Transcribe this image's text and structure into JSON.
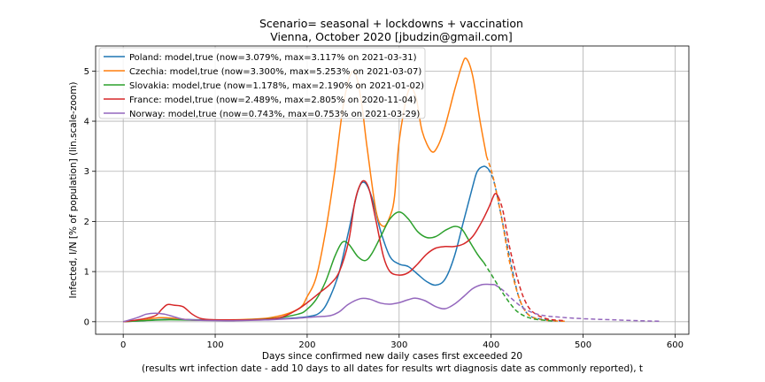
{
  "chart_data": {
    "type": "line",
    "title": "Scenario= seasonal + lockdowns + vaccination",
    "subtitle": "Vienna, October 2020 [jbudzin@gmail.com]",
    "xlabel": "Days since confirmed new daily cases first exceeded 20",
    "xlabel2": "(results wrt infection date - add 10 days to all dates for results wrt diagnosis date as commonly reported), t",
    "ylabel": "Infected, I/N [% of population] (lin.scale-zoom)",
    "xlim": [
      -30,
      615
    ],
    "ylim": [
      -0.25,
      5.5
    ],
    "xticks": [
      0,
      100,
      200,
      300,
      400,
      500,
      600
    ],
    "yticks": [
      0,
      1,
      2,
      3,
      4,
      5
    ],
    "grid": true,
    "legend_position": "top-left",
    "series": [
      {
        "name": "Poland: model,true (now=3.079%, max=3.117% on 2021-03-31)",
        "color": "#1f77b4",
        "solid": [
          [
            0,
            0
          ],
          [
            20,
            0.02
          ],
          [
            50,
            0.05
          ],
          [
            80,
            0.04
          ],
          [
            120,
            0.03
          ],
          [
            160,
            0.05
          ],
          [
            200,
            0.1
          ],
          [
            215,
            0.2
          ],
          [
            225,
            0.5
          ],
          [
            235,
            1.0
          ],
          [
            245,
            1.8
          ],
          [
            255,
            2.6
          ],
          [
            262,
            2.78
          ],
          [
            270,
            2.5
          ],
          [
            280,
            1.8
          ],
          [
            290,
            1.3
          ],
          [
            300,
            1.15
          ],
          [
            310,
            1.1
          ],
          [
            320,
            0.95
          ],
          [
            330,
            0.8
          ],
          [
            340,
            0.73
          ],
          [
            350,
            0.85
          ],
          [
            360,
            1.3
          ],
          [
            370,
            2.0
          ],
          [
            380,
            2.7
          ],
          [
            385,
            3.0
          ],
          [
            392,
            3.1
          ],
          [
            397,
            3.05
          ]
        ],
        "dashed": [
          [
            397,
            3.05
          ],
          [
            403,
            2.8
          ],
          [
            410,
            2.2
          ],
          [
            420,
            1.3
          ],
          [
            430,
            0.5
          ],
          [
            440,
            0.15
          ],
          [
            455,
            0.05
          ],
          [
            480,
            0.01
          ]
        ]
      },
      {
        "name": "Czechia: model,true (now=3.300%, max=5.253% on 2021-03-07)",
        "color": "#ff7f0e",
        "solid": [
          [
            0,
            0
          ],
          [
            20,
            0.03
          ],
          [
            40,
            0.08
          ],
          [
            60,
            0.06
          ],
          [
            80,
            0.03
          ],
          [
            120,
            0.04
          ],
          [
            160,
            0.08
          ],
          [
            190,
            0.25
          ],
          [
            200,
            0.5
          ],
          [
            210,
            0.9
          ],
          [
            220,
            1.8
          ],
          [
            230,
            3.0
          ],
          [
            240,
            4.4
          ],
          [
            250,
            5.0
          ],
          [
            258,
            4.5
          ],
          [
            265,
            3.5
          ],
          [
            275,
            2.2
          ],
          [
            283,
            1.9
          ],
          [
            290,
            2.1
          ],
          [
            295,
            2.5
          ],
          [
            300,
            3.6
          ],
          [
            310,
            4.6
          ],
          [
            318,
            4.5
          ],
          [
            325,
            3.8
          ],
          [
            335,
            3.4
          ],
          [
            342,
            3.5
          ],
          [
            350,
            3.9
          ],
          [
            360,
            4.6
          ],
          [
            368,
            5.1
          ],
          [
            373,
            5.25
          ],
          [
            380,
            4.9
          ],
          [
            388,
            4.0
          ],
          [
            395,
            3.3
          ]
        ],
        "dashed": [
          [
            395,
            3.3
          ],
          [
            402,
            2.9
          ],
          [
            410,
            2.2
          ],
          [
            420,
            1.2
          ],
          [
            430,
            0.5
          ],
          [
            440,
            0.15
          ],
          [
            455,
            0.04
          ],
          [
            480,
            0.01
          ]
        ]
      },
      {
        "name": "Slovakia: model,true (now=1.178%, max=2.190% on 2021-01-02)",
        "color": "#2ca02c",
        "solid": [
          [
            0,
            0
          ],
          [
            20,
            0.02
          ],
          [
            50,
            0.04
          ],
          [
            80,
            0.03
          ],
          [
            120,
            0.03
          ],
          [
            160,
            0.06
          ],
          [
            190,
            0.15
          ],
          [
            200,
            0.25
          ],
          [
            210,
            0.45
          ],
          [
            220,
            0.8
          ],
          [
            230,
            1.3
          ],
          [
            238,
            1.58
          ],
          [
            245,
            1.55
          ],
          [
            255,
            1.3
          ],
          [
            263,
            1.22
          ],
          [
            270,
            1.35
          ],
          [
            280,
            1.7
          ],
          [
            290,
            2.05
          ],
          [
            300,
            2.19
          ],
          [
            310,
            2.05
          ],
          [
            320,
            1.8
          ],
          [
            330,
            1.68
          ],
          [
            340,
            1.7
          ],
          [
            350,
            1.82
          ],
          [
            360,
            1.9
          ],
          [
            368,
            1.85
          ],
          [
            375,
            1.65
          ],
          [
            385,
            1.35
          ],
          [
            392,
            1.18
          ]
        ],
        "dashed": [
          [
            392,
            1.18
          ],
          [
            400,
            0.95
          ],
          [
            410,
            0.65
          ],
          [
            420,
            0.38
          ],
          [
            430,
            0.18
          ],
          [
            445,
            0.06
          ],
          [
            470,
            0.01
          ]
        ]
      },
      {
        "name": "France: model,true (now=2.489%, max=2.805% on 2020-11-04)",
        "color": "#d62728",
        "solid": [
          [
            0,
            0
          ],
          [
            20,
            0.05
          ],
          [
            35,
            0.12
          ],
          [
            42,
            0.25
          ],
          [
            48,
            0.34
          ],
          [
            55,
            0.33
          ],
          [
            65,
            0.3
          ],
          [
            75,
            0.15
          ],
          [
            85,
            0.06
          ],
          [
            100,
            0.04
          ],
          [
            140,
            0.04
          ],
          [
            170,
            0.08
          ],
          [
            190,
            0.25
          ],
          [
            205,
            0.45
          ],
          [
            215,
            0.6
          ],
          [
            225,
            0.75
          ],
          [
            235,
            1.0
          ],
          [
            245,
            1.6
          ],
          [
            252,
            2.4
          ],
          [
            258,
            2.75
          ],
          [
            263,
            2.8
          ],
          [
            268,
            2.6
          ],
          [
            275,
            2.0
          ],
          [
            283,
            1.3
          ],
          [
            290,
            1.0
          ],
          [
            300,
            0.93
          ],
          [
            310,
            0.98
          ],
          [
            320,
            1.15
          ],
          [
            330,
            1.35
          ],
          [
            340,
            1.47
          ],
          [
            350,
            1.5
          ],
          [
            360,
            1.5
          ],
          [
            370,
            1.55
          ],
          [
            380,
            1.7
          ],
          [
            390,
            2.0
          ],
          [
            398,
            2.3
          ],
          [
            404,
            2.55
          ],
          [
            408,
            2.49
          ]
        ],
        "dashed": [
          [
            408,
            2.49
          ],
          [
            413,
            2.2
          ],
          [
            420,
            1.5
          ],
          [
            428,
            0.9
          ],
          [
            436,
            0.45
          ],
          [
            445,
            0.2
          ],
          [
            460,
            0.06
          ],
          [
            480,
            0.02
          ]
        ]
      },
      {
        "name": "Norway: model,true (now=0.743%, max=0.753% on 2021-03-29)",
        "color": "#9467bd",
        "solid": [
          [
            0,
            0
          ],
          [
            15,
            0.08
          ],
          [
            25,
            0.15
          ],
          [
            35,
            0.17
          ],
          [
            45,
            0.15
          ],
          [
            55,
            0.1
          ],
          [
            65,
            0.05
          ],
          [
            80,
            0.03
          ],
          [
            120,
            0.02
          ],
          [
            160,
            0.04
          ],
          [
            190,
            0.07
          ],
          [
            210,
            0.1
          ],
          [
            225,
            0.12
          ],
          [
            235,
            0.2
          ],
          [
            245,
            0.35
          ],
          [
            258,
            0.46
          ],
          [
            268,
            0.45
          ],
          [
            280,
            0.37
          ],
          [
            290,
            0.35
          ],
          [
            300,
            0.38
          ],
          [
            310,
            0.44
          ],
          [
            318,
            0.47
          ],
          [
            328,
            0.42
          ],
          [
            340,
            0.3
          ],
          [
            350,
            0.26
          ],
          [
            360,
            0.35
          ],
          [
            370,
            0.5
          ],
          [
            380,
            0.66
          ],
          [
            390,
            0.74
          ],
          [
            398,
            0.745
          ],
          [
            404,
            0.74
          ]
        ],
        "dashed": [
          [
            404,
            0.74
          ],
          [
            412,
            0.64
          ],
          [
            420,
            0.5
          ],
          [
            430,
            0.34
          ],
          [
            440,
            0.22
          ],
          [
            455,
            0.13
          ],
          [
            475,
            0.09
          ],
          [
            500,
            0.06
          ],
          [
            530,
            0.04
          ],
          [
            560,
            0.02
          ],
          [
            585,
            0.01
          ]
        ]
      }
    ]
  }
}
